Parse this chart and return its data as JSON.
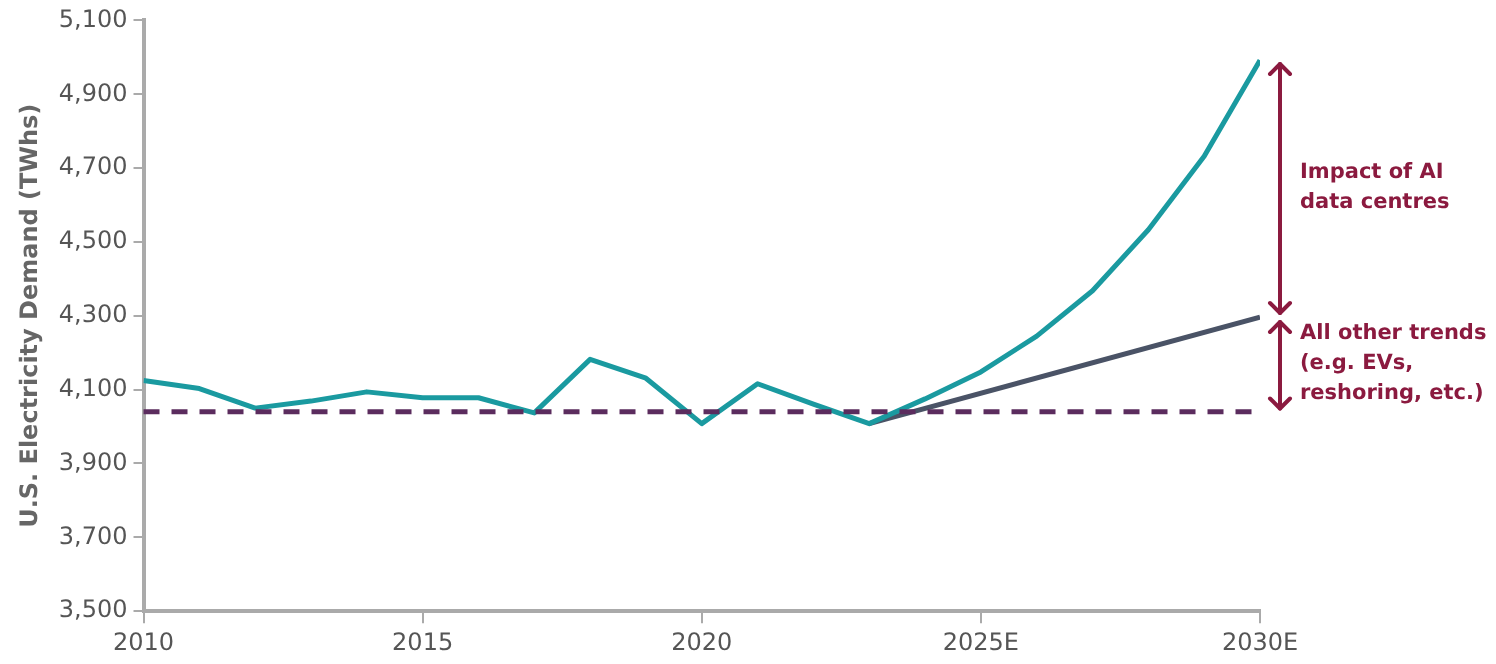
{
  "chart_data": {
    "type": "line",
    "ylabel": "U.S. Electricity Demand (TWhs)",
    "x": [
      2010,
      2011,
      2012,
      2013,
      2014,
      2015,
      2016,
      2017,
      2018,
      2019,
      2020,
      2021,
      2022,
      2023,
      2024,
      2025,
      2026,
      2027,
      2028,
      2029,
      2030
    ],
    "series": [
      {
        "color": "#1a9aa0",
        "values": [
          4125,
          4103,
          4050,
          4069,
          4094,
          4078,
          4078,
          4037,
          4182,
          4131,
          4008,
          4116,
          4061,
          4008,
          4075,
          4148,
          4245,
          4368,
          4533,
          4732,
          4992
        ]
      },
      {
        "color": "#4a5366",
        "x": [
          2023,
          2030
        ],
        "values": [
          4008,
          4296
        ]
      }
    ],
    "xlim": [
      2010,
      2030
    ],
    "xticks": [
      2010,
      2015,
      2020,
      {
        "value": 2025,
        "label": "2025E"
      },
      {
        "value": 2030,
        "label": "2030E"
      }
    ],
    "ylim": [
      3500,
      5100
    ],
    "yticks": [
      {
        "value": 3500,
        "label": "3,500"
      },
      {
        "value": 3700,
        "label": "3,700"
      },
      {
        "value": 3900,
        "label": "3,900"
      },
      {
        "value": 4100,
        "label": "4,100"
      },
      {
        "value": 4300,
        "label": "4,300"
      },
      {
        "value": 4500,
        "label": "4,500"
      },
      {
        "value": 4700,
        "label": "4,700"
      },
      {
        "value": 4900,
        "label": "4,900"
      },
      {
        "value": 5100,
        "label": "5,100"
      }
    ],
    "ref_lines": [
      {
        "axis": "y",
        "value": 4040,
        "color": "#5b2c5e",
        "line_style": "dashed"
      }
    ],
    "annotations": [
      "Impact of AI data centres",
      "All other trends (e.g. EVs, reshoring, etc.)"
    ],
    "grid": false,
    "legend": false,
    "marker": "none",
    "line_style": "solid"
  }
}
